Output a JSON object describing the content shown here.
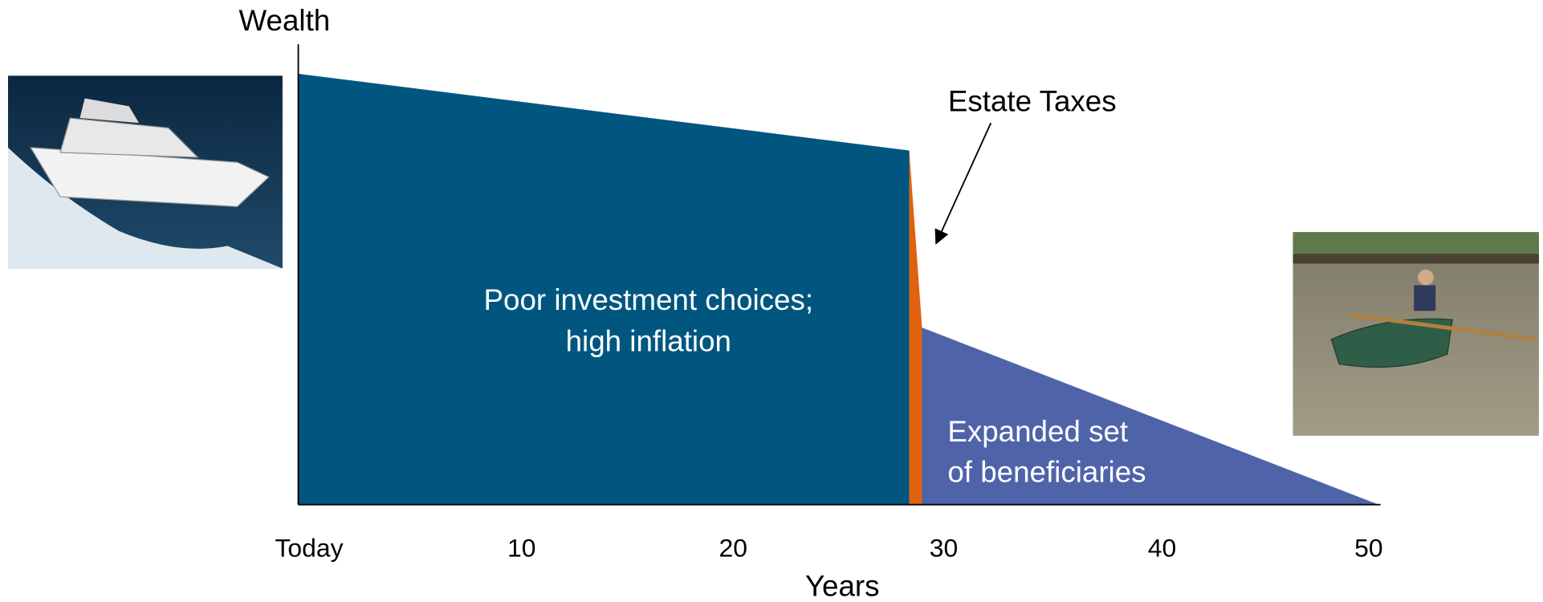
{
  "axis": {
    "y_label": "Wealth",
    "x_label": "Years",
    "ticks": [
      "Today",
      "10",
      "20",
      "30",
      "40",
      "50"
    ]
  },
  "regions": [
    {
      "label": "Poor investment choices;",
      "label2": "high inflation"
    },
    {
      "label": "Expanded set",
      "label2": "of beneficiaries"
    }
  ],
  "callout": "Estate Taxes"
}
